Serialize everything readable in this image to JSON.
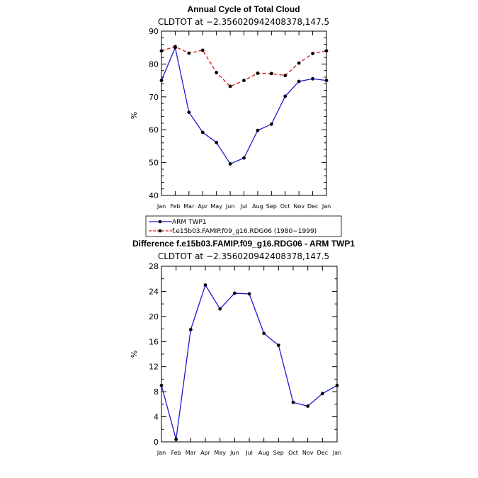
{
  "chart_data": [
    {
      "type": "line",
      "title": "Annual Cycle of Total Cloud",
      "subtitle": "CLDTOT at −2.356020942408378,147.5",
      "xlabel": "",
      "ylabel": "%",
      "categories": [
        "Jan",
        "Feb",
        "Mar",
        "Apr",
        "May",
        "Jun",
        "Jul",
        "Aug",
        "Sep",
        "Oct",
        "Nov",
        "Dec",
        "Jan"
      ],
      "ylim": [
        40,
        90
      ],
      "yticks": [
        40,
        50,
        60,
        70,
        80,
        90
      ],
      "series": [
        {
          "name": "ARM TWP1",
          "color": "#1a1ad6",
          "dash": "solid",
          "values": [
            75.0,
            85.0,
            65.3,
            59.2,
            56.1,
            49.6,
            51.4,
            59.8,
            61.7,
            70.2,
            74.7,
            75.5,
            75.0
          ]
        },
        {
          "name": "f.e15b03.FAMIP.f09_g16.RDG06 (1980−1999)",
          "color": "#e01010",
          "dash": "dashed",
          "values": [
            84.0,
            85.3,
            83.3,
            84.2,
            77.4,
            73.2,
            75.0,
            77.2,
            77.1,
            76.5,
            80.3,
            83.2,
            84.0
          ]
        }
      ],
      "legend": "below"
    },
    {
      "type": "line",
      "title": "Difference f.e15b03.FAMIP.f09_g16.RDG06 - ARM TWP1",
      "subtitle": "CLDTOT at −2.356020942408378,147.5",
      "xlabel": "",
      "ylabel": "%",
      "categories": [
        "Jan",
        "Feb",
        "Mar",
        "Apr",
        "May",
        "Jun",
        "Jul",
        "Aug",
        "Sep",
        "Oct",
        "Nov",
        "Dec",
        "Jan"
      ],
      "ylim": [
        0,
        28
      ],
      "yticks": [
        0,
        4,
        8,
        12,
        16,
        20,
        24,
        28
      ],
      "series": [
        {
          "name": "Difference",
          "color": "#1a1ad6",
          "dash": "solid",
          "values": [
            9.0,
            0.4,
            17.9,
            25.0,
            21.2,
            23.7,
            23.6,
            17.3,
            15.4,
            6.3,
            5.7,
            7.7,
            9.0
          ]
        }
      ]
    }
  ]
}
